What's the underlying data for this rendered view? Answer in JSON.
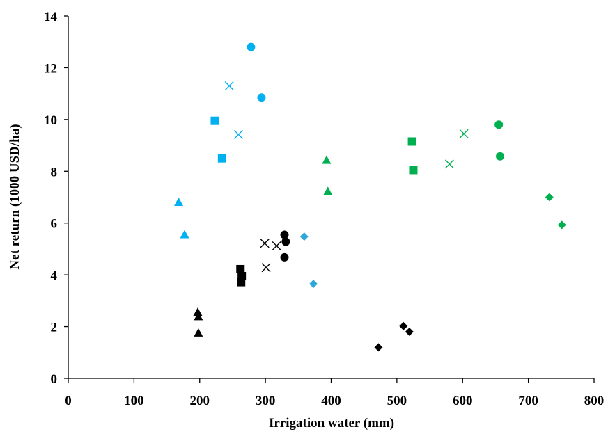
{
  "chart_data": {
    "type": "scatter",
    "title": "",
    "xlabel": "Irrigation water (mm)",
    "ylabel": "Net return (1000 USD/ha)",
    "xlim": [
      0,
      800
    ],
    "ylim": [
      0,
      14
    ],
    "x_ticks": [
      "0",
      "100",
      "200",
      "300",
      "400",
      "500",
      "600",
      "700",
      "800"
    ],
    "y_ticks": [
      "0",
      "2",
      "4",
      "6",
      "8",
      "10",
      "12",
      "14"
    ],
    "grid": false,
    "legend": "none",
    "series": [
      {
        "marker": "circle",
        "color": "#00b0f0",
        "points": [
          [
            278,
            12.8
          ],
          [
            294,
            10.85
          ]
        ]
      },
      {
        "marker": "x",
        "color": "#00b0f0",
        "points": [
          [
            245,
            11.3
          ],
          [
            259,
            9.42
          ]
        ]
      },
      {
        "marker": "square",
        "color": "#00b0f0",
        "points": [
          [
            223,
            9.95
          ],
          [
            234,
            8.5
          ]
        ]
      },
      {
        "marker": "triangle",
        "color": "#00b0f0",
        "points": [
          [
            168,
            6.8
          ],
          [
            177,
            5.55
          ]
        ]
      },
      {
        "marker": "diamond",
        "color": "#2ea8d8",
        "points": [
          [
            359,
            5.48
          ],
          [
            373,
            3.65
          ]
        ]
      },
      {
        "marker": "circle",
        "color": "#00b050",
        "points": [
          [
            655,
            9.8
          ],
          [
            657,
            8.58
          ]
        ]
      },
      {
        "marker": "x",
        "color": "#00b050",
        "points": [
          [
            602,
            9.45
          ],
          [
            580,
            8.28
          ]
        ]
      },
      {
        "marker": "square",
        "color": "#00b050",
        "points": [
          [
            523,
            9.15
          ],
          [
            525,
            8.05
          ]
        ]
      },
      {
        "marker": "triangle",
        "color": "#00b050",
        "points": [
          [
            393,
            8.42
          ],
          [
            395,
            7.22
          ]
        ]
      },
      {
        "marker": "diamond",
        "color": "#00b050",
        "points": [
          [
            732,
            7.0
          ],
          [
            751,
            5.93
          ]
        ]
      },
      {
        "marker": "circle",
        "color": "#000000",
        "points": [
          [
            329,
            5.55
          ],
          [
            331,
            5.28
          ],
          [
            329,
            4.68
          ]
        ]
      },
      {
        "marker": "x",
        "color": "#000000",
        "points": [
          [
            299,
            5.22
          ],
          [
            317,
            5.12
          ],
          [
            301,
            4.28
          ]
        ]
      },
      {
        "marker": "square",
        "color": "#000000",
        "points": [
          [
            262,
            4.22
          ],
          [
            264,
            3.95
          ],
          [
            263,
            3.72
          ]
        ]
      },
      {
        "marker": "triangle",
        "color": "#000000",
        "points": [
          [
            197,
            2.55
          ],
          [
            198,
            2.38
          ],
          [
            198,
            1.75
          ]
        ]
      },
      {
        "marker": "diamond",
        "color": "#000000",
        "points": [
          [
            472,
            1.2
          ],
          [
            510,
            2.02
          ],
          [
            519,
            1.8
          ]
        ]
      }
    ]
  }
}
